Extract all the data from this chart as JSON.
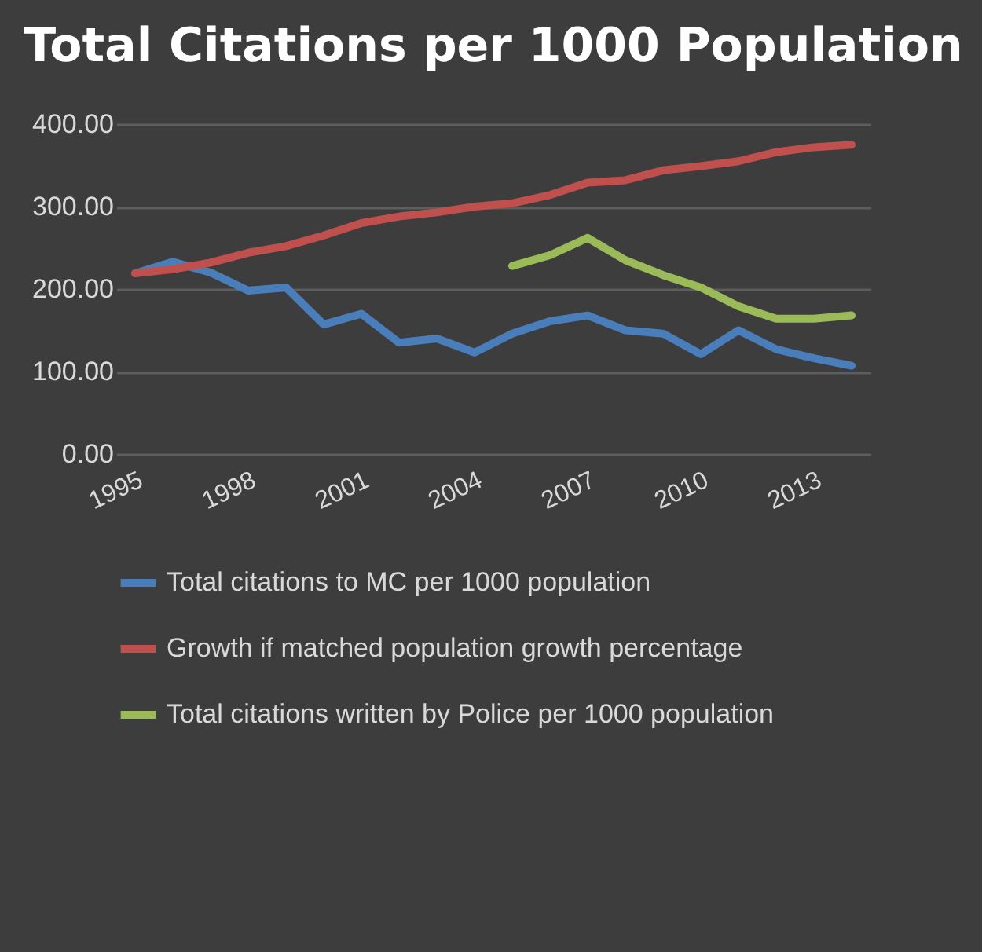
{
  "chart_data": {
    "type": "line",
    "title": "Total Citations per 1000 Population",
    "categories": [
      "1995",
      null,
      null,
      "1998",
      null,
      null,
      "2001",
      null,
      null,
      "2004",
      null,
      null,
      "2007",
      null,
      null,
      "2010",
      null,
      null,
      "2013",
      null
    ],
    "series": [
      {
        "name": "Total citations to MC per 1000 population",
        "color": "#4a7ebb",
        "values": [
          219,
          233,
          220,
          198,
          202,
          157,
          170,
          135,
          140,
          123,
          146,
          161,
          168,
          150,
          146,
          121,
          150,
          127,
          116,
          107
        ]
      },
      {
        "name": "Growth if matched population growth percentage",
        "color": "#c0504d",
        "values": [
          219,
          224,
          232,
          244,
          252,
          265,
          280,
          288,
          293,
          300,
          304,
          314,
          329,
          332,
          344,
          349,
          355,
          366,
          372,
          375
        ]
      },
      {
        "name": "Total citations written by Police per 1000 population",
        "color": "#9bbb59",
        "values": [
          null,
          null,
          null,
          null,
          null,
          null,
          null,
          null,
          null,
          null,
          228,
          241,
          262,
          235,
          217,
          202,
          179,
          164,
          164,
          168
        ]
      }
    ],
    "ylim": [
      0,
      400
    ],
    "yticks": [
      {
        "value": 0,
        "label": "0.00"
      },
      {
        "value": 100,
        "label": "100.00"
      },
      {
        "value": 200,
        "label": "200.00"
      },
      {
        "value": 300,
        "label": "300.00"
      },
      {
        "value": 400,
        "label": "400.00"
      }
    ],
    "grid": "y",
    "legend": "bottom",
    "line_style": "solid",
    "marker": "none"
  }
}
